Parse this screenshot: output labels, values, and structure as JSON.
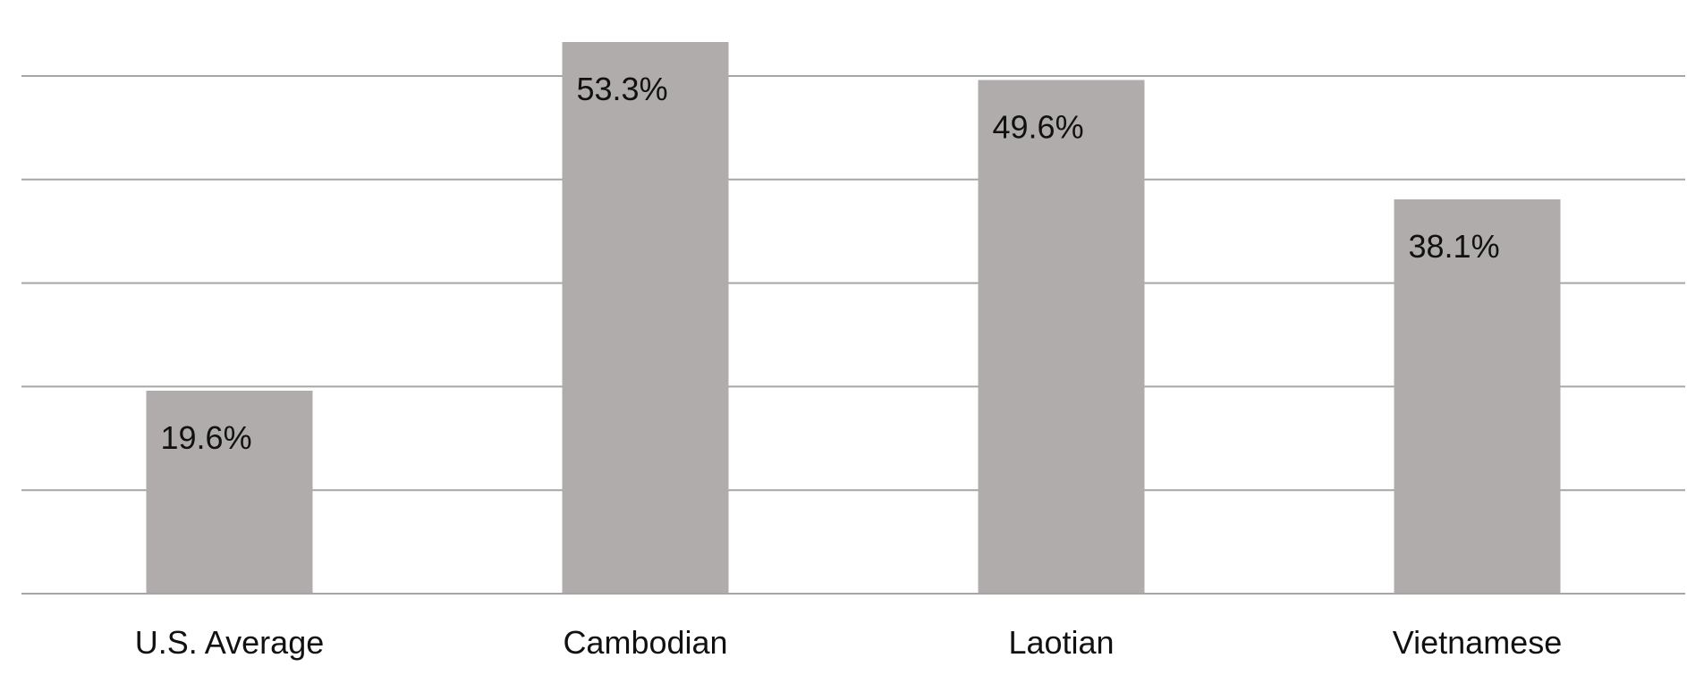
{
  "chart_data": {
    "type": "bar",
    "categories": [
      "U.S. Average",
      "Cambodian",
      "Laotian",
      "Vietnamese"
    ],
    "values": [
      19.6,
      53.3,
      49.6,
      38.1
    ],
    "data_labels": [
      "19.6%",
      "53.3%",
      "49.6%",
      "38.1%"
    ],
    "ylim": [
      0,
      50
    ],
    "y_gridlines": [
      0,
      10,
      20,
      30,
      40,
      50
    ],
    "grid": true,
    "legend": "none",
    "bar_color": "#afacab",
    "gridline_color": "#a6a6a6"
  }
}
